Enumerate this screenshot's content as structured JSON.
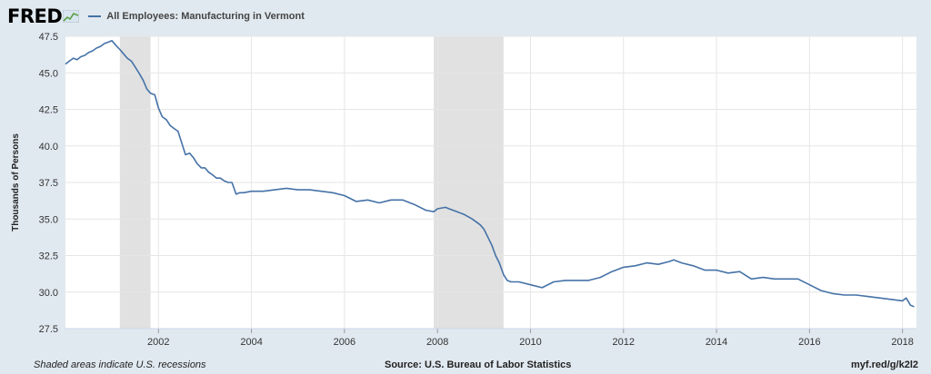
{
  "header": {
    "logo_text": "FRED",
    "series_title": "All Employees: Manufacturing in Vermont"
  },
  "footer": {
    "note": "Shaded areas indicate U.S. recessions",
    "source": "Source: U.S. Bureau of Labor Statistics",
    "link": "myf.red/g/k2l2"
  },
  "colors": {
    "line": "#4572a7",
    "recession": "#e1e1e1",
    "background": "#e1e9f0",
    "plot": "#ffffff",
    "grid": "#e6e6e6"
  },
  "chart_data": {
    "type": "line",
    "title": "All Employees: Manufacturing in Vermont",
    "ylabel": "Thousands of Persons",
    "xlabel": "",
    "xlim": [
      2000.0,
      2018.3
    ],
    "ylim": [
      27.5,
      47.5
    ],
    "yticks": [
      "27.5",
      "30.0",
      "32.5",
      "35.0",
      "37.5",
      "40.0",
      "42.5",
      "45.0",
      "47.5"
    ],
    "xticks": [
      "2002",
      "2004",
      "2006",
      "2008",
      "2010",
      "2012",
      "2014",
      "2016",
      "2018"
    ],
    "recessions": [
      [
        2001.17,
        2001.83
      ],
      [
        2007.92,
        2009.42
      ]
    ],
    "grid": true,
    "series": [
      {
        "name": "All Employees: Manufacturing in Vermont",
        "x": [
          2000.0,
          2000.08,
          2000.17,
          2000.25,
          2000.33,
          2000.42,
          2000.5,
          2000.58,
          2000.67,
          2000.75,
          2000.83,
          2000.92,
          2001.0,
          2001.08,
          2001.17,
          2001.25,
          2001.33,
          2001.42,
          2001.5,
          2001.58,
          2001.67,
          2001.75,
          2001.83,
          2001.92,
          2002.0,
          2002.08,
          2002.17,
          2002.25,
          2002.33,
          2002.42,
          2002.5,
          2002.58,
          2002.67,
          2002.75,
          2002.83,
          2002.92,
          2003.0,
          2003.08,
          2003.17,
          2003.25,
          2003.33,
          2003.42,
          2003.5,
          2003.58,
          2003.67,
          2003.75,
          2003.83,
          2004.0,
          2004.25,
          2004.5,
          2004.75,
          2005.0,
          2005.25,
          2005.5,
          2005.75,
          2006.0,
          2006.25,
          2006.5,
          2006.75,
          2007.0,
          2007.25,
          2007.5,
          2007.75,
          2007.92,
          2008.0,
          2008.17,
          2008.25,
          2008.42,
          2008.58,
          2008.75,
          2008.92,
          2009.0,
          2009.17,
          2009.25,
          2009.33,
          2009.42,
          2009.5,
          2009.58,
          2009.75,
          2010.0,
          2010.25,
          2010.5,
          2010.75,
          2011.0,
          2011.25,
          2011.5,
          2011.75,
          2012.0,
          2012.25,
          2012.5,
          2012.75,
          2013.0,
          2013.08,
          2013.25,
          2013.5,
          2013.75,
          2014.0,
          2014.25,
          2014.5,
          2014.75,
          2015.0,
          2015.25,
          2015.5,
          2015.75,
          2016.0,
          2016.25,
          2016.5,
          2016.75,
          2017.0,
          2017.25,
          2017.5,
          2017.75,
          2018.0,
          2018.08,
          2018.17,
          2018.25
        ],
        "values": [
          45.6,
          45.8,
          46.0,
          45.9,
          46.1,
          46.2,
          46.4,
          46.5,
          46.7,
          46.8,
          47.0,
          47.1,
          47.2,
          46.9,
          46.6,
          46.3,
          46.0,
          45.8,
          45.4,
          45.0,
          44.5,
          43.9,
          43.6,
          43.5,
          42.6,
          42.0,
          41.8,
          41.4,
          41.2,
          41.0,
          40.2,
          39.4,
          39.5,
          39.2,
          38.8,
          38.5,
          38.5,
          38.2,
          38.0,
          37.8,
          37.8,
          37.6,
          37.5,
          37.5,
          36.7,
          36.8,
          36.8,
          36.9,
          36.9,
          37.0,
          37.1,
          37.0,
          37.0,
          36.9,
          36.8,
          36.6,
          36.2,
          36.3,
          36.1,
          36.3,
          36.3,
          36.0,
          35.6,
          35.5,
          35.7,
          35.8,
          35.7,
          35.5,
          35.3,
          35.0,
          34.6,
          34.3,
          33.2,
          32.5,
          32.0,
          31.2,
          30.8,
          30.7,
          30.7,
          30.5,
          30.3,
          30.7,
          30.8,
          30.8,
          30.8,
          31.0,
          31.4,
          31.7,
          31.8,
          32.0,
          31.9,
          32.1,
          32.2,
          32.0,
          31.8,
          31.5,
          31.5,
          31.3,
          31.4,
          30.9,
          31.0,
          30.9,
          30.9,
          30.9,
          30.5,
          30.1,
          29.9,
          29.8,
          29.8,
          29.7,
          29.6,
          29.5,
          29.4,
          29.6,
          29.1,
          29.0
        ]
      }
    ]
  }
}
